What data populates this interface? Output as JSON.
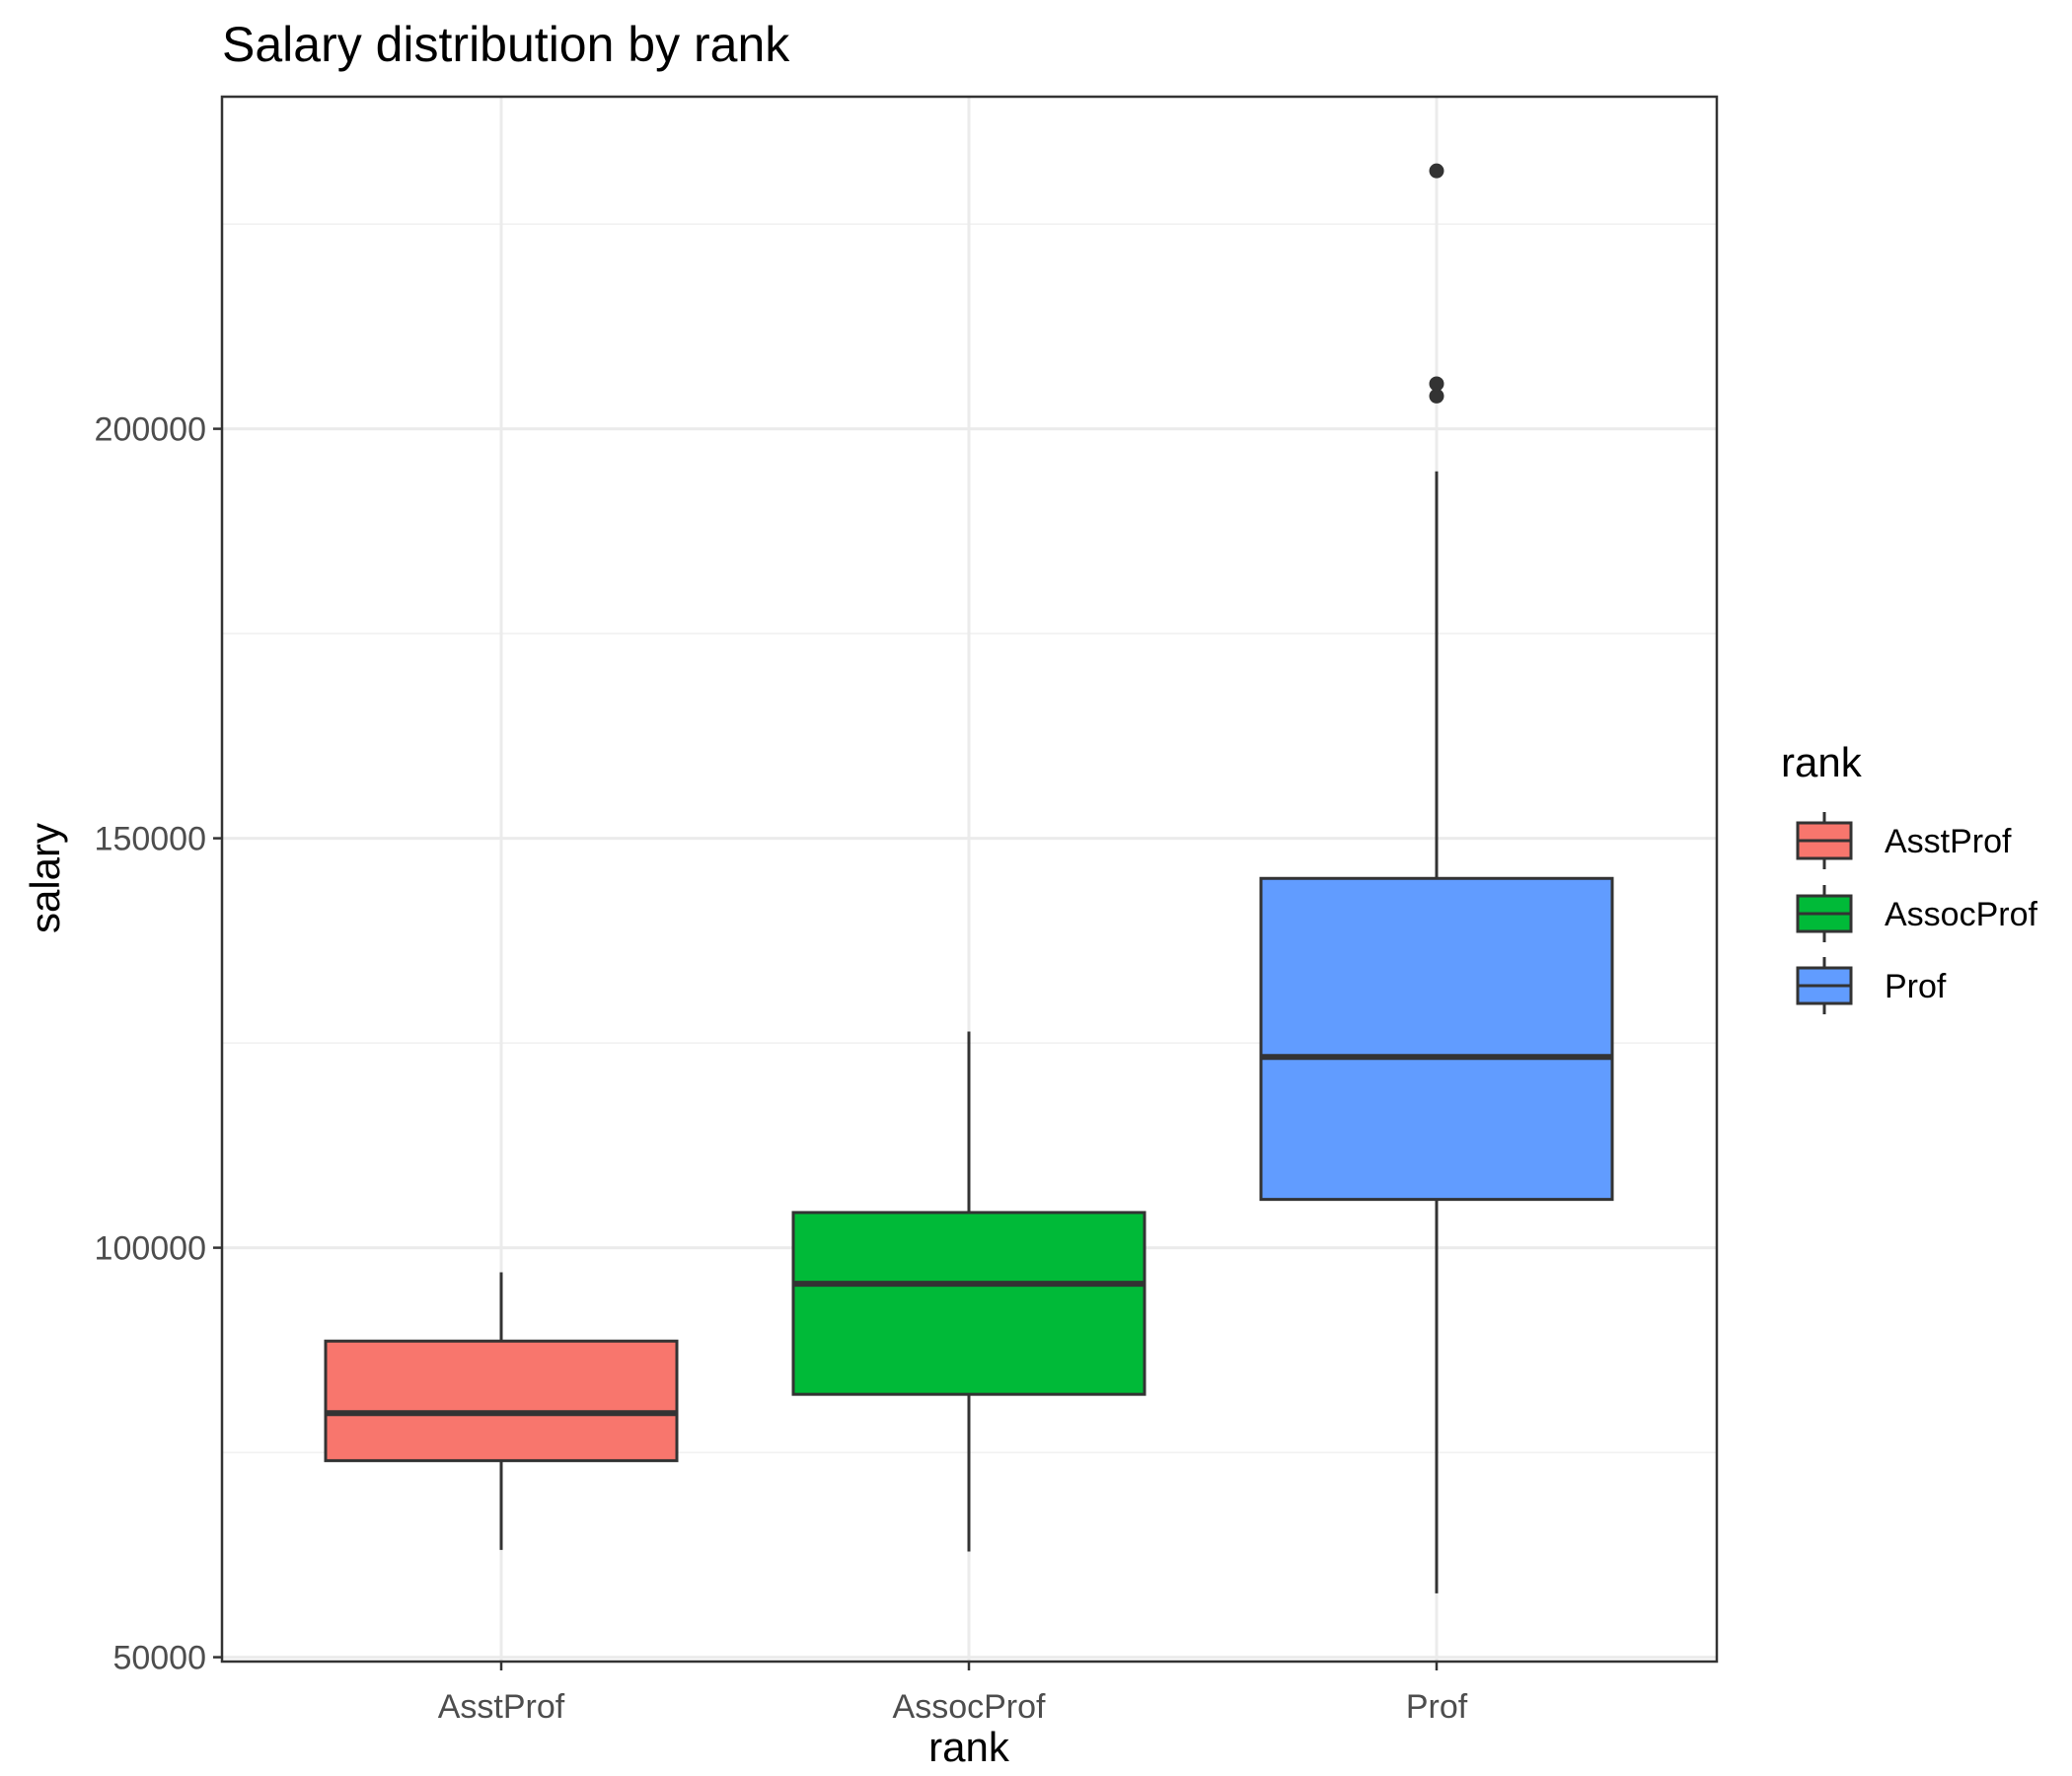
{
  "chart_data": {
    "type": "boxplot",
    "title": "Salary distribution by rank",
    "xlabel": "rank",
    "ylabel": "salary",
    "categories": [
      "AsstProf",
      "AssocProf",
      "Prof"
    ],
    "y_ticks": [
      50000,
      100000,
      150000,
      200000
    ],
    "y_tick_labels": [
      "50000",
      "100000",
      "150000",
      "200000"
    ],
    "ylim": [
      50000,
      200000
    ],
    "grid": true,
    "legend": {
      "title": "rank",
      "position": "right",
      "entries": [
        "AsstProf",
        "AssocProf",
        "Prof"
      ]
    },
    "series": [
      {
        "name": "AsstProf",
        "color": "#F8766D",
        "whisker_low": 63100,
        "q1": 74000,
        "median": 79800,
        "q3": 88600,
        "whisker_high": 97000,
        "outliers": []
      },
      {
        "name": "AssocProf",
        "color": "#00BA38",
        "whisker_low": 62900,
        "q1": 82100,
        "median": 95600,
        "q3": 104300,
        "whisker_high": 126400,
        "outliers": []
      },
      {
        "name": "Prof",
        "color": "#619CFF",
        "whisker_low": 57800,
        "q1": 105900,
        "median": 123300,
        "q3": 145100,
        "whisker_high": 194800,
        "outliers": [
          204000,
          205500,
          231500
        ]
      }
    ]
  }
}
